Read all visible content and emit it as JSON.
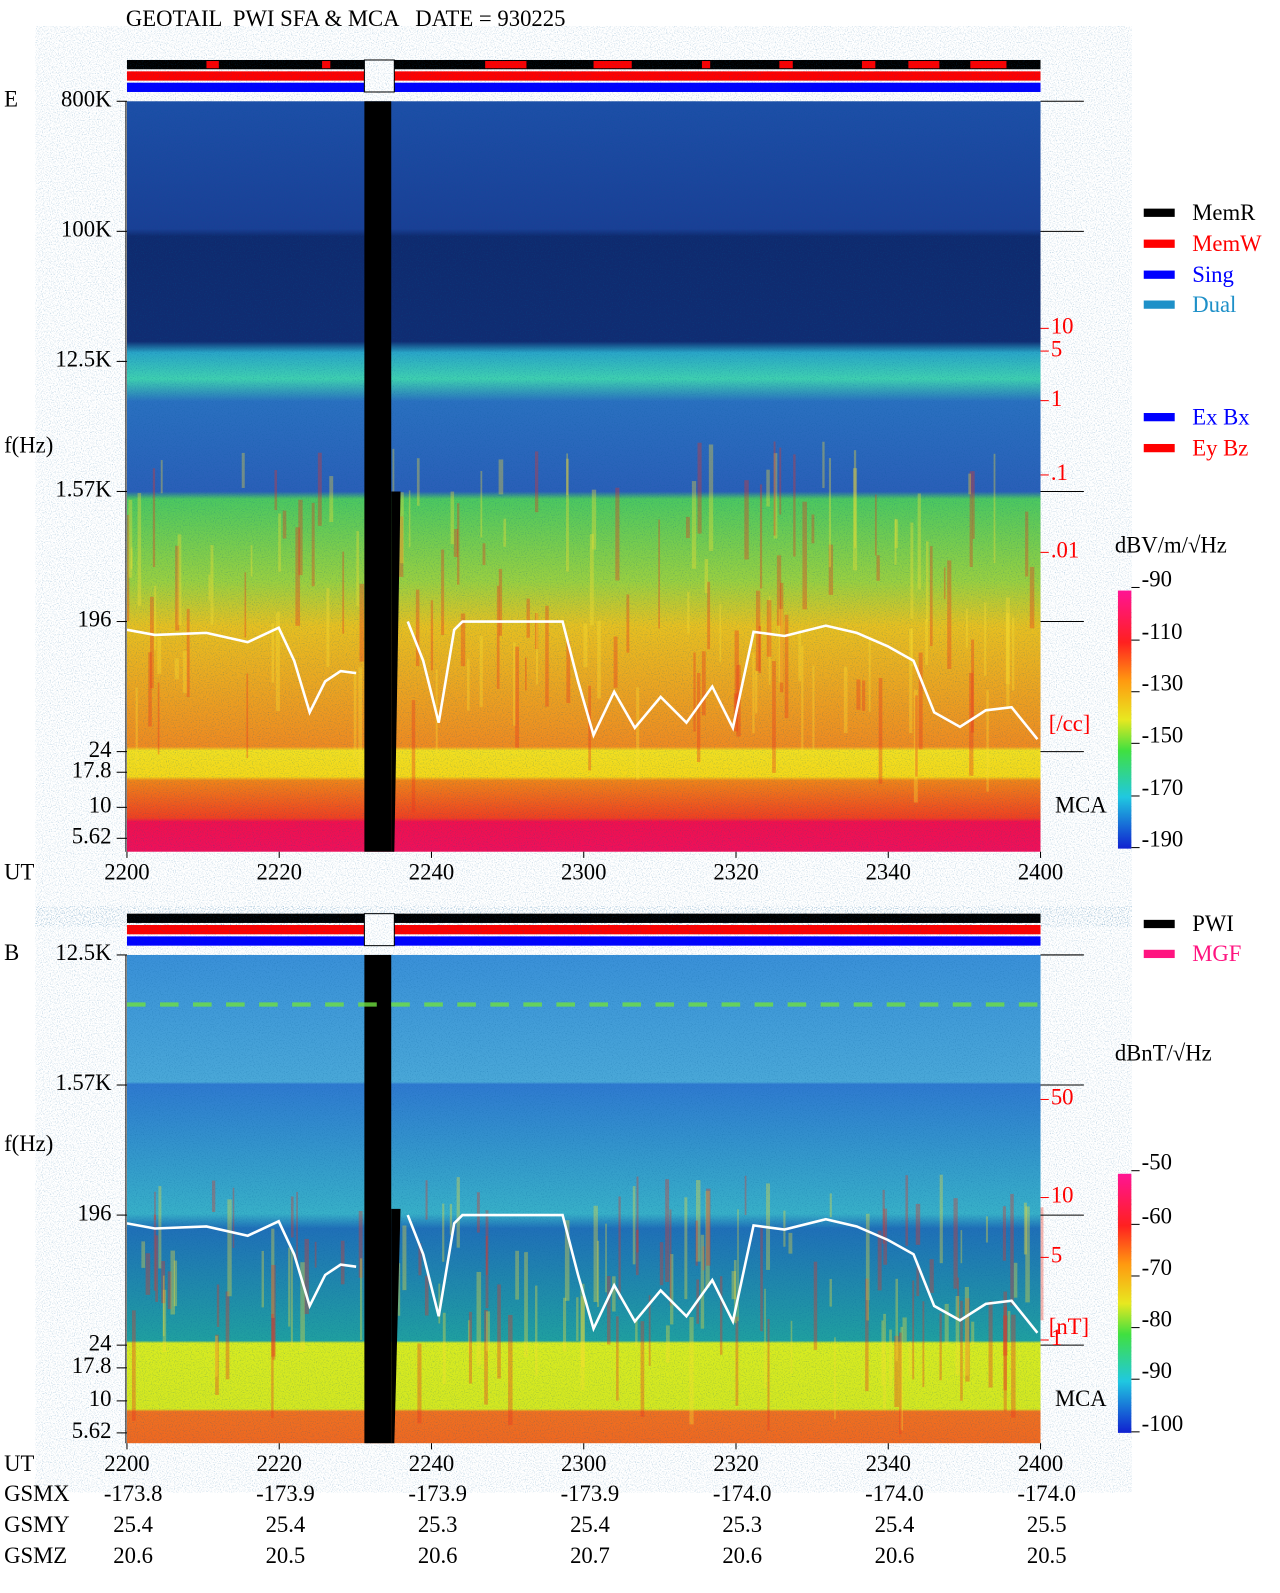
{
  "header": {
    "title": "GEOTAIL  PWI SFA & MCA   DATE = 930225"
  },
  "panels": [
    {
      "label": "E",
      "y_axis_label": "f(Hz)",
      "freq_ticks": [
        "800K",
        "100K",
        "12.5K",
        "1.57K",
        "196",
        "24",
        "17.8",
        "10",
        "5.62"
      ],
      "right_ticks": [
        "10",
        "5",
        "1",
        ".1",
        ".01"
      ],
      "right_unit": "[/cc]",
      "mca_label": "MCA",
      "x_label": "UT",
      "time_ticks": [
        "2200",
        "2220",
        "2240",
        "2300",
        "2320",
        "2340",
        "2400"
      ],
      "colorbar": {
        "unit": "dBV/m/√Hz",
        "ticks": [
          "-90",
          "-110",
          "-130",
          "-150",
          "-170",
          "-190"
        ]
      }
    },
    {
      "label": "B",
      "y_axis_label": "f(Hz)",
      "freq_ticks": [
        "12.5K",
        "1.57K",
        "196",
        "24",
        "17.8",
        "10",
        "5.62"
      ],
      "right_ticks": [
        "50",
        "10",
        "5",
        "1"
      ],
      "right_unit": "[nT]",
      "mca_label": "MCA",
      "x_label": "UT",
      "time_ticks": [
        "2200",
        "2220",
        "2240",
        "2300",
        "2320",
        "2340",
        "2400"
      ],
      "colorbar": {
        "unit": "dBnT/√Hz",
        "ticks": [
          "-50",
          "-60",
          "-70",
          "-80",
          "-90",
          "-100"
        ]
      }
    }
  ],
  "legends": {
    "memory": [
      {
        "name": "MemR",
        "color": "#000000"
      },
      {
        "name": "MemW",
        "color": "#ff0000"
      },
      {
        "name": "Sing",
        "color": "#0000ff"
      },
      {
        "name": "Dual",
        "color": "#1e90c8"
      }
    ],
    "components": [
      {
        "name": "Ex Bx",
        "color": "#0000ff"
      },
      {
        "name": "Ey Bz",
        "color": "#ff0000"
      }
    ],
    "sources": [
      {
        "name": "PWI",
        "color": "#000000"
      },
      {
        "name": "MGF",
        "color": "#ff1480"
      }
    ]
  },
  "orbit": {
    "rows": [
      {
        "label": "GSMX",
        "values": [
          "-173.8",
          "-173.9",
          "-173.9",
          "-173.9",
          "-174.0",
          "-174.0",
          "-174.0"
        ]
      },
      {
        "label": "GSMY",
        "values": [
          "25.4",
          "25.4",
          "25.3",
          "25.4",
          "25.3",
          "25.4",
          "25.5"
        ]
      },
      {
        "label": "GSMZ",
        "values": [
          "20.6",
          "20.5",
          "20.6",
          "20.7",
          "20.6",
          "20.6",
          "20.5"
        ]
      }
    ]
  }
}
